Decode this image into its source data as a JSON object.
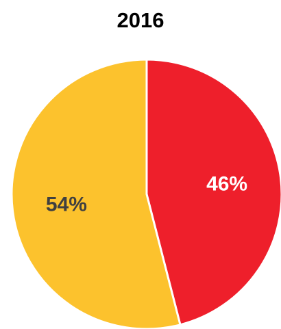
{
  "chart_data": {
    "type": "pie",
    "title": "2016",
    "slices": [
      {
        "label": "46%",
        "value": 46,
        "color": "#ee1f2b",
        "label_color": "#ffffff"
      },
      {
        "label": "54%",
        "value": 54,
        "color": "#fcc22d",
        "label_color": "#404040"
      }
    ],
    "start_angle_deg": 0,
    "direction": "clockwise",
    "separator_color": "#ffffff"
  }
}
